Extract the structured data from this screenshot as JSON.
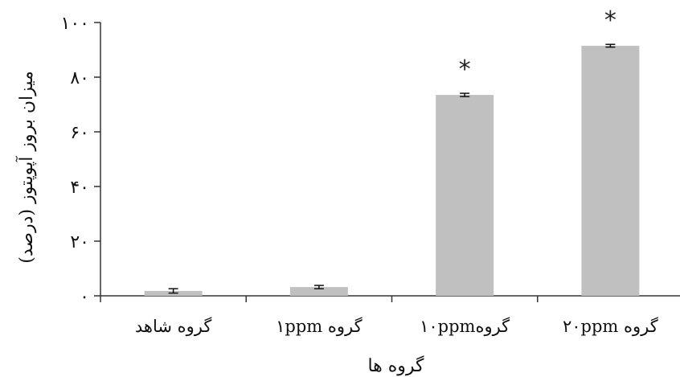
{
  "chart_data": {
    "type": "bar",
    "categories": [
      "گروه شاهد",
      "گروه ۱ppm",
      "گروه۱۰ppm",
      "گروه ۲۰ppm"
    ],
    "values": [
      1.8,
      3.2,
      73.5,
      91.5
    ],
    "errors": [
      0.8,
      0.6,
      0.6,
      0.5
    ],
    "annotations": [
      "",
      "",
      "*",
      "*"
    ],
    "ylim": [
      0,
      100
    ],
    "yticks": [
      0,
      20,
      40,
      60,
      80,
      100
    ],
    "ytick_labels": [
      "۰",
      "۲۰",
      "۴۰",
      "۶۰",
      "۸۰",
      "۱۰۰"
    ],
    "xlabel": "گروه ها",
    "ylabel": "میزان بروز آپوپتوز (درصد)",
    "title": "",
    "grid": false,
    "bar_color": "#c0c0c0"
  }
}
